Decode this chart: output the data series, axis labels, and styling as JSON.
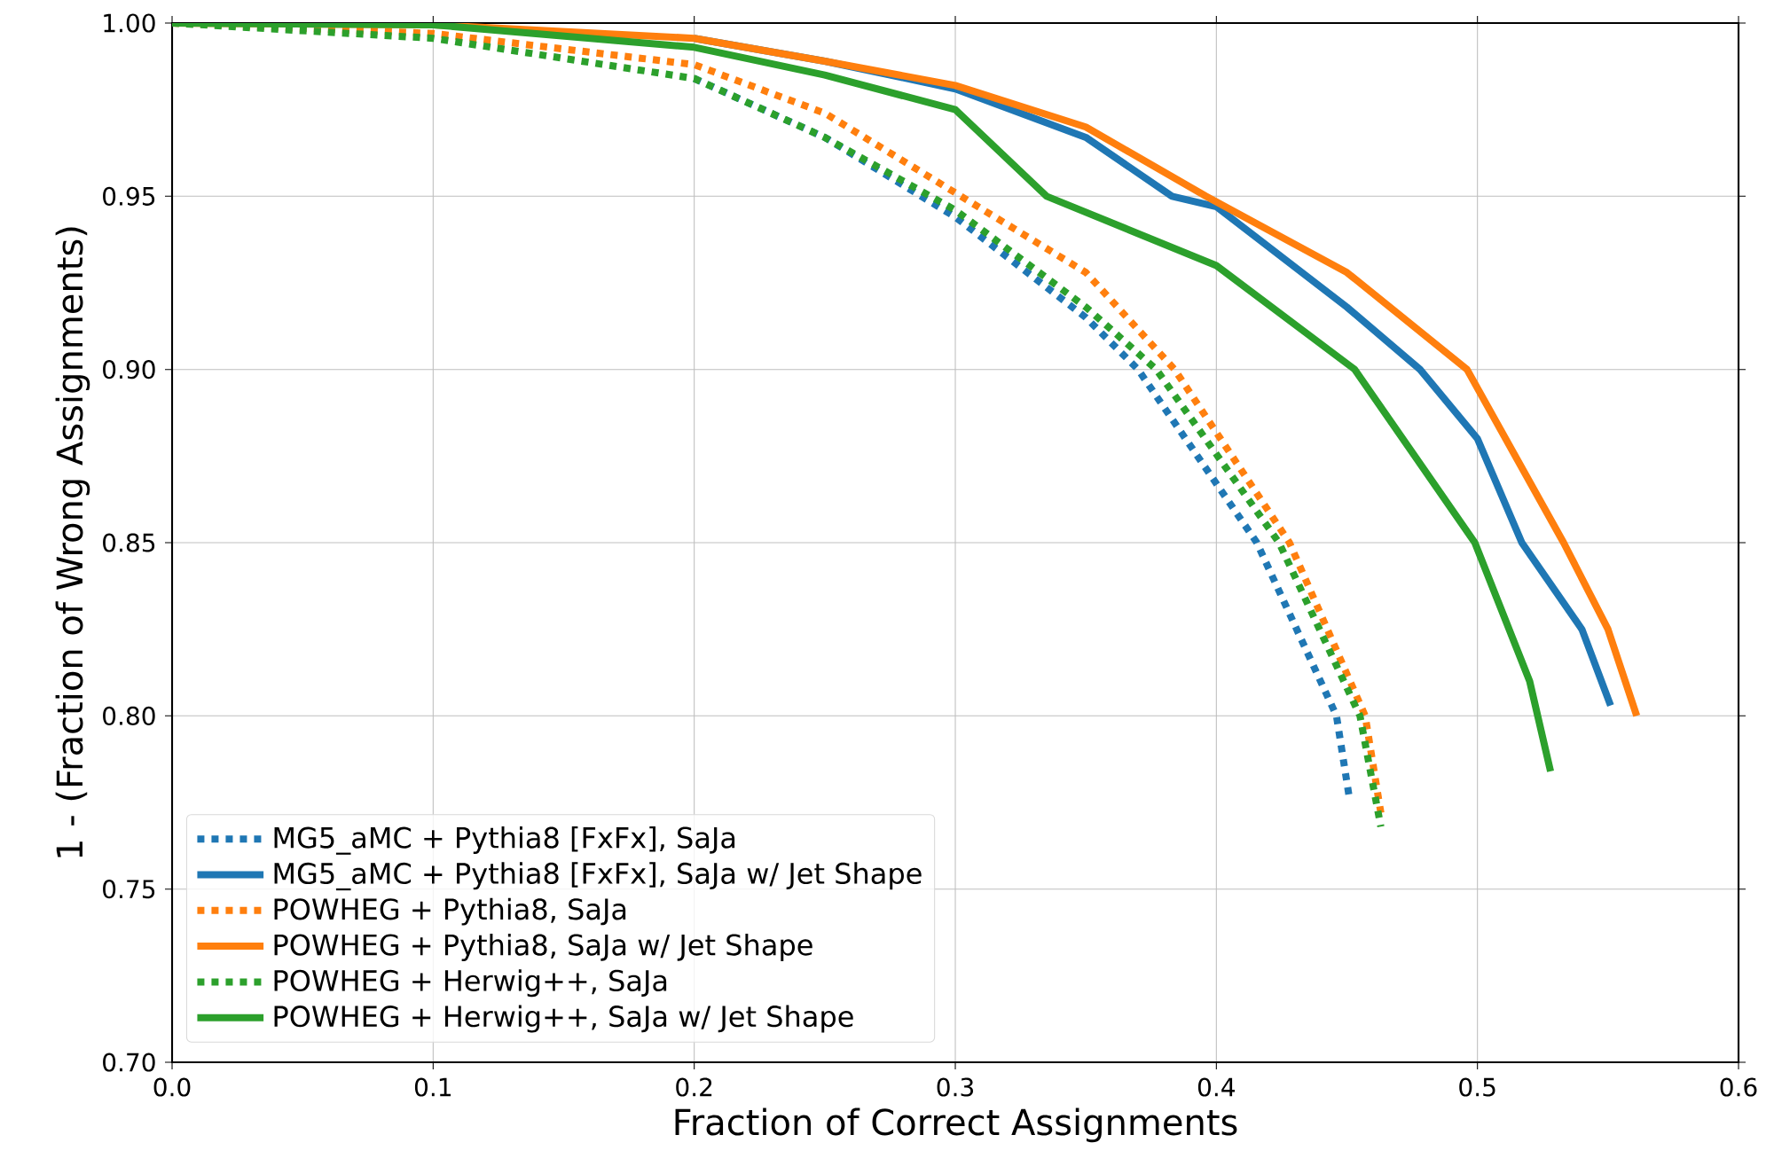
{
  "chart_data": {
    "type": "line",
    "xlabel": "Fraction of Correct Assignments",
    "ylabel": "1 - (Fraction of Wrong Assignments)",
    "xlim": [
      0.0,
      0.6
    ],
    "ylim": [
      0.7,
      1.0
    ],
    "xticks": [
      {
        "value": 0.0,
        "label": "0.0"
      },
      {
        "value": 0.1,
        "label": "0.1"
      },
      {
        "value": 0.2,
        "label": "0.2"
      },
      {
        "value": 0.3,
        "label": "0.3"
      },
      {
        "value": 0.4,
        "label": "0.4"
      },
      {
        "value": 0.5,
        "label": "0.5"
      },
      {
        "value": 0.6,
        "label": "0.6"
      }
    ],
    "yticks": [
      {
        "value": 0.7,
        "label": "0.70"
      },
      {
        "value": 0.75,
        "label": "0.75"
      },
      {
        "value": 0.8,
        "label": "0.80"
      },
      {
        "value": 0.85,
        "label": "0.85"
      },
      {
        "value": 0.9,
        "label": "0.90"
      },
      {
        "value": 0.95,
        "label": "0.95"
      },
      {
        "value": 1.0,
        "label": "1.00"
      }
    ],
    "grid": true,
    "legend": "bottom left",
    "marker": "none",
    "series": [
      {
        "name": "MG5_aMC + Pythia8 [FxFx], SaJa",
        "color": "#1f77b4",
        "line_style": "dotted",
        "x": [
          0.2,
          0.25,
          0.3,
          0.35,
          0.37,
          0.4155,
          0.446,
          0.451
        ],
        "values": [
          0.984,
          0.967,
          0.944,
          0.915,
          0.9,
          0.85,
          0.8,
          0.776
        ]
      },
      {
        "name": "MG5_aMC + Pythia8 [FxFx], SaJa w/ Jet Shape",
        "color": "#1f77b4",
        "line_style": "solid",
        "x": [
          0.2,
          0.25,
          0.3,
          0.35,
          0.383,
          0.4,
          0.45,
          0.478,
          0.5,
          0.517,
          0.54,
          0.551
        ],
        "values": [
          0.9956,
          0.989,
          0.981,
          0.967,
          0.95,
          0.947,
          0.918,
          0.9,
          0.88,
          0.85,
          0.825,
          0.803
        ]
      },
      {
        "name": "POWHEG + Pythia8, SaJa",
        "color": "#ff7f0e",
        "line_style": "dotted",
        "x": [
          0.0,
          0.1,
          0.2,
          0.25,
          0.3,
          0.35,
          0.384,
          0.428,
          0.457,
          0.463
        ],
        "values": [
          1.0,
          0.997,
          0.988,
          0.974,
          0.951,
          0.928,
          0.9,
          0.85,
          0.8,
          0.772
        ]
      },
      {
        "name": "POWHEG + Pythia8, SaJa w/ Jet Shape",
        "color": "#ff7f0e",
        "line_style": "solid",
        "x": [
          0.0,
          0.1,
          0.2,
          0.25,
          0.3,
          0.35,
          0.396,
          0.45,
          0.496,
          0.533,
          0.55,
          0.561
        ],
        "values": [
          1.0,
          0.9995,
          0.9956,
          0.989,
          0.982,
          0.97,
          0.95,
          0.928,
          0.9,
          0.85,
          0.825,
          0.8
        ]
      },
      {
        "name": "POWHEG + Herwig++, SaJa",
        "color": "#2ca02c",
        "line_style": "dotted",
        "x": [
          0.0,
          0.1,
          0.2,
          0.25,
          0.3,
          0.35,
          0.377,
          0.424,
          0.455,
          0.463
        ],
        "values": [
          1.0,
          0.9956,
          0.984,
          0.967,
          0.946,
          0.918,
          0.9,
          0.85,
          0.8,
          0.768
        ]
      },
      {
        "name": "POWHEG + Herwig++, SaJa w/ Jet Shape",
        "color": "#2ca02c",
        "line_style": "solid",
        "x": [
          0.0,
          0.1,
          0.2,
          0.25,
          0.3,
          0.335,
          0.4,
          0.453,
          0.499,
          0.52,
          0.528
        ],
        "values": [
          1.0,
          0.9995,
          0.993,
          0.985,
          0.975,
          0.95,
          0.93,
          0.9,
          0.85,
          0.81,
          0.784
        ]
      }
    ]
  }
}
